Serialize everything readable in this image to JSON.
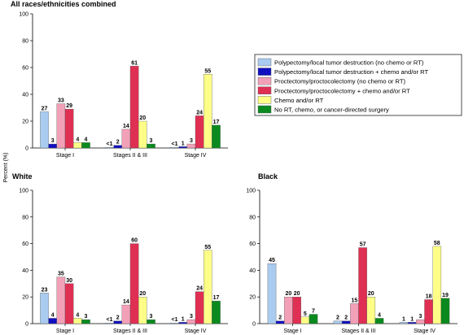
{
  "figure": {
    "ylabel": "Percent (%)"
  },
  "legend": {
    "placement": "right, beside top-left panel",
    "entries": [
      {
        "label": "Polypectomy/local tumor destruction (no chemo or RT)",
        "color": "#a9cbef"
      },
      {
        "label": "Polypectomy/local tumor destruction + chemo and/or RT",
        "color": "#1010c0"
      },
      {
        "label": "Proctectomy/proctocolectomy (no chemo or RT)",
        "color": "#f2a0b8"
      },
      {
        "label": "Proctectomy/proctocolectomy + chemo and/or RT",
        "color": "#df2f52"
      },
      {
        "label": "Chemo and/or RT",
        "color": "#ffff88"
      },
      {
        "label": "No RT, chemo, or cancer-directed surgery",
        "color": "#0a8a1e"
      }
    ]
  },
  "chart_data": [
    {
      "type": "bar",
      "title": "All races/ethnicities combined",
      "categories": [
        "Stage I",
        "Stages II & III",
        "Stage IV"
      ],
      "ylim": [
        0,
        100
      ],
      "yticks": [
        "0",
        "20",
        "40",
        "60",
        "80",
        "100"
      ],
      "series": [
        {
          "name": "Polypectomy/local tumor destruction (no chemo or RT)",
          "values": [
            27,
            0.5,
            0.5
          ],
          "labels": [
            "27",
            "<1",
            "<1"
          ]
        },
        {
          "name": "Polypectomy/local tumor destruction + chemo and/or RT",
          "values": [
            3,
            2,
            1
          ],
          "labels": [
            "3",
            "2",
            "1"
          ]
        },
        {
          "name": "Proctectomy/proctocolectomy (no chemo or RT)",
          "values": [
            33,
            14,
            3
          ],
          "labels": [
            "33",
            "14",
            "3"
          ]
        },
        {
          "name": "Proctectomy/proctocolectomy + chemo and/or RT",
          "values": [
            29,
            61,
            24
          ],
          "labels": [
            "29",
            "61",
            "24"
          ]
        },
        {
          "name": "Chemo and/or RT",
          "values": [
            4,
            20,
            55
          ],
          "labels": [
            "4",
            "20",
            "55"
          ]
        },
        {
          "name": "No RT, chemo, or cancer-directed surgery",
          "values": [
            4,
            3,
            17
          ],
          "labels": [
            "4",
            "3",
            "17"
          ]
        }
      ]
    },
    {
      "type": "bar",
      "title": "White",
      "categories": [
        "Stage I",
        "Stages II & III",
        "Stage IV"
      ],
      "ylim": [
        0,
        100
      ],
      "yticks": [
        "0",
        "20",
        "40",
        "60",
        "80",
        "100"
      ],
      "series": [
        {
          "name": "Polypectomy/local tumor destruction (no chemo or RT)",
          "values": [
            23,
            0.5,
            0.5
          ],
          "labels": [
            "23",
            "<1",
            "<1"
          ]
        },
        {
          "name": "Polypectomy/local tumor destruction + chemo and/or RT",
          "values": [
            4,
            2,
            1
          ],
          "labels": [
            "4",
            "2",
            "1"
          ]
        },
        {
          "name": "Proctectomy/proctocolectomy (no chemo or RT)",
          "values": [
            35,
            14,
            3
          ],
          "labels": [
            "35",
            "14",
            "3"
          ]
        },
        {
          "name": "Proctectomy/proctocolectomy + chemo and/or RT",
          "values": [
            30,
            60,
            24
          ],
          "labels": [
            "30",
            "60",
            "24"
          ]
        },
        {
          "name": "Chemo and/or RT",
          "values": [
            4,
            20,
            55
          ],
          "labels": [
            "4",
            "20",
            "55"
          ]
        },
        {
          "name": "No RT, chemo, or cancer-directed surgery",
          "values": [
            3,
            3,
            17
          ],
          "labels": [
            "3",
            "3",
            "17"
          ]
        }
      ]
    },
    {
      "type": "bar",
      "title": "Black",
      "categories": [
        "Stage I",
        "Stages II & III",
        "Stage IV"
      ],
      "ylim": [
        0,
        100
      ],
      "yticks": [
        "0",
        "20",
        "40",
        "60",
        "80",
        "100"
      ],
      "series": [
        {
          "name": "Polypectomy/local tumor destruction (no chemo or RT)",
          "values": [
            45,
            2,
            1
          ],
          "labels": [
            "45",
            "2",
            "1"
          ]
        },
        {
          "name": "Polypectomy/local tumor destruction + chemo and/or RT",
          "values": [
            2,
            2,
            1
          ],
          "labels": [
            "2",
            "2",
            "1"
          ]
        },
        {
          "name": "Proctectomy/proctocolectomy (no chemo or RT)",
          "values": [
            20,
            15,
            3
          ],
          "labels": [
            "20",
            "15",
            "3"
          ]
        },
        {
          "name": "Proctectomy/proctocolectomy + chemo and/or RT",
          "values": [
            20,
            57,
            18
          ],
          "labels": [
            "20",
            "57",
            "18"
          ]
        },
        {
          "name": "Chemo and/or RT",
          "values": [
            5,
            20,
            58
          ],
          "labels": [
            "5",
            "20",
            "58"
          ]
        },
        {
          "name": "No RT, chemo, or cancer-directed surgery",
          "values": [
            7,
            4,
            19
          ],
          "labels": [
            "7",
            "4",
            "19"
          ]
        }
      ]
    }
  ]
}
